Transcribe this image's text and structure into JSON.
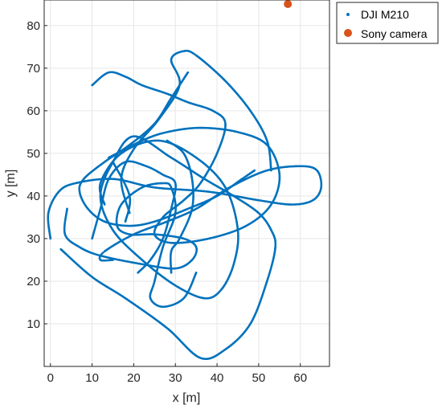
{
  "chart_data": {
    "type": "scatter",
    "title": "",
    "xlabel": "x [m]",
    "ylabel": "y [m]",
    "xlim": [
      -1.5,
      67
    ],
    "ylim": [
      0,
      86
    ],
    "x_ticks": [
      0,
      10,
      20,
      30,
      40,
      50,
      60
    ],
    "y_ticks": [
      10,
      20,
      30,
      40,
      50,
      60,
      70,
      80
    ],
    "grid": true,
    "legend_position": "outside-top-right",
    "series": [
      {
        "name": "DJI M210",
        "marker": "point",
        "color": "#0072BD",
        "paths": [
          [
            [
              2.5,
              27.5
            ],
            [
              10,
              21
            ],
            [
              18,
              16
            ],
            [
              28,
              9
            ],
            [
              36,
              2
            ],
            [
              42,
              4
            ],
            [
              48,
              10
            ],
            [
              52,
              20
            ],
            [
              54,
              28
            ],
            [
              53,
              32
            ],
            [
              50,
              36
            ],
            [
              44,
              40
            ],
            [
              37,
              44
            ],
            [
              29,
              49
            ],
            [
              20,
              54
            ],
            [
              15,
              48
            ],
            [
              12,
              40
            ],
            [
              15,
              32
            ],
            [
              22,
              25
            ],
            [
              30,
              19
            ],
            [
              37,
              16
            ],
            [
              41,
              18
            ],
            [
              44,
              24
            ],
            [
              45,
              32
            ],
            [
              42,
              42
            ],
            [
              35,
              49
            ],
            [
              26,
              53
            ],
            [
              17,
              50
            ],
            [
              12,
              43
            ],
            [
              13,
              38
            ]
          ],
          [
            [
              4,
              37
            ],
            [
              3.5,
              31
            ],
            [
              7,
              28
            ],
            [
              12,
              26
            ],
            [
              22,
              24
            ],
            [
              30,
              23
            ],
            [
              34,
              25
            ],
            [
              35,
              28
            ],
            [
              32,
              30
            ],
            [
              25,
              31
            ],
            [
              19,
              31
            ],
            [
              16,
              33
            ],
            [
              17,
              38
            ],
            [
              22,
              42
            ],
            [
              27,
              43
            ],
            [
              29,
              42
            ],
            [
              30,
              36
            ],
            [
              27,
              28
            ],
            [
              25,
              20
            ],
            [
              24,
              16
            ],
            [
              27,
              14
            ],
            [
              32,
              16
            ],
            [
              35,
              22
            ]
          ],
          [
            [
              0,
              30
            ],
            [
              -0.5,
              36
            ],
            [
              2,
              41
            ],
            [
              6,
              43
            ],
            [
              15,
              44
            ],
            [
              25,
              42
            ],
            [
              38,
              41
            ],
            [
              50,
              39
            ],
            [
              58,
              38
            ],
            [
              63,
              39
            ],
            [
              65,
              42
            ],
            [
              64,
              46
            ],
            [
              60,
              47
            ],
            [
              52,
              46
            ],
            [
              43,
              42
            ],
            [
              35,
              37
            ],
            [
              28,
              34
            ],
            [
              20,
              31
            ],
            [
              13,
              27
            ],
            [
              12,
              25
            ],
            [
              15,
              25
            ]
          ],
          [
            [
              14,
              49
            ],
            [
              22,
              53
            ],
            [
              28,
              55
            ],
            [
              36,
              56
            ],
            [
              45,
              55
            ],
            [
              52,
              52
            ],
            [
              55,
              45
            ],
            [
              53,
              38
            ],
            [
              47,
              33
            ],
            [
              38,
              30
            ],
            [
              29,
              29
            ],
            [
              25,
              31
            ],
            [
              27,
              35
            ],
            [
              32,
              39
            ],
            [
              36,
              43
            ],
            [
              40,
              50
            ],
            [
              42,
              57
            ],
            [
              39,
              60
            ],
            [
              33,
              62
            ],
            [
              28,
              64
            ],
            [
              22,
              66
            ],
            [
              18,
              68
            ],
            [
              14,
              69
            ],
            [
              10,
              66
            ]
          ],
          [
            [
              19,
              36
            ],
            [
              17,
              44
            ],
            [
              20,
              51
            ],
            [
              26,
              58
            ],
            [
              31,
              66
            ],
            [
              29,
              72
            ],
            [
              32,
              74
            ],
            [
              35,
              73
            ],
            [
              42,
              67
            ],
            [
              48,
              60
            ],
            [
              52,
              53
            ],
            [
              53,
              46
            ]
          ],
          [
            [
              10,
              30
            ],
            [
              12,
              37
            ],
            [
              14,
              44
            ],
            [
              18,
              48
            ],
            [
              23,
              47
            ],
            [
              27,
              45
            ],
            [
              30,
              43
            ],
            [
              29,
              37
            ],
            [
              27,
              30
            ],
            [
              24,
              25
            ],
            [
              21,
              22
            ]
          ],
          [
            [
              28,
              53
            ],
            [
              32,
              50
            ],
            [
              34,
              44
            ],
            [
              34,
              37
            ],
            [
              31,
              30
            ],
            [
              29,
              27
            ],
            [
              29,
              22
            ]
          ],
          [
            [
              33,
              69
            ],
            [
              29,
              63
            ],
            [
              25,
              57
            ],
            [
              19,
              52
            ],
            [
              13,
              48
            ],
            [
              8,
              44
            ],
            [
              7,
              41
            ],
            [
              9,
              37
            ],
            [
              13,
              34
            ],
            [
              19,
              33
            ],
            [
              25,
              34
            ],
            [
              33,
              37
            ],
            [
              40,
              40
            ],
            [
              46,
              44
            ],
            [
              49,
              46
            ]
          ],
          [
            [
              15,
              48
            ],
            [
              19,
              40
            ],
            [
              18,
              34
            ]
          ]
        ]
      },
      {
        "name": "Sony camera",
        "marker": "circle",
        "color": "#D95319",
        "points": [
          [
            57,
            86
          ]
        ]
      }
    ]
  }
}
